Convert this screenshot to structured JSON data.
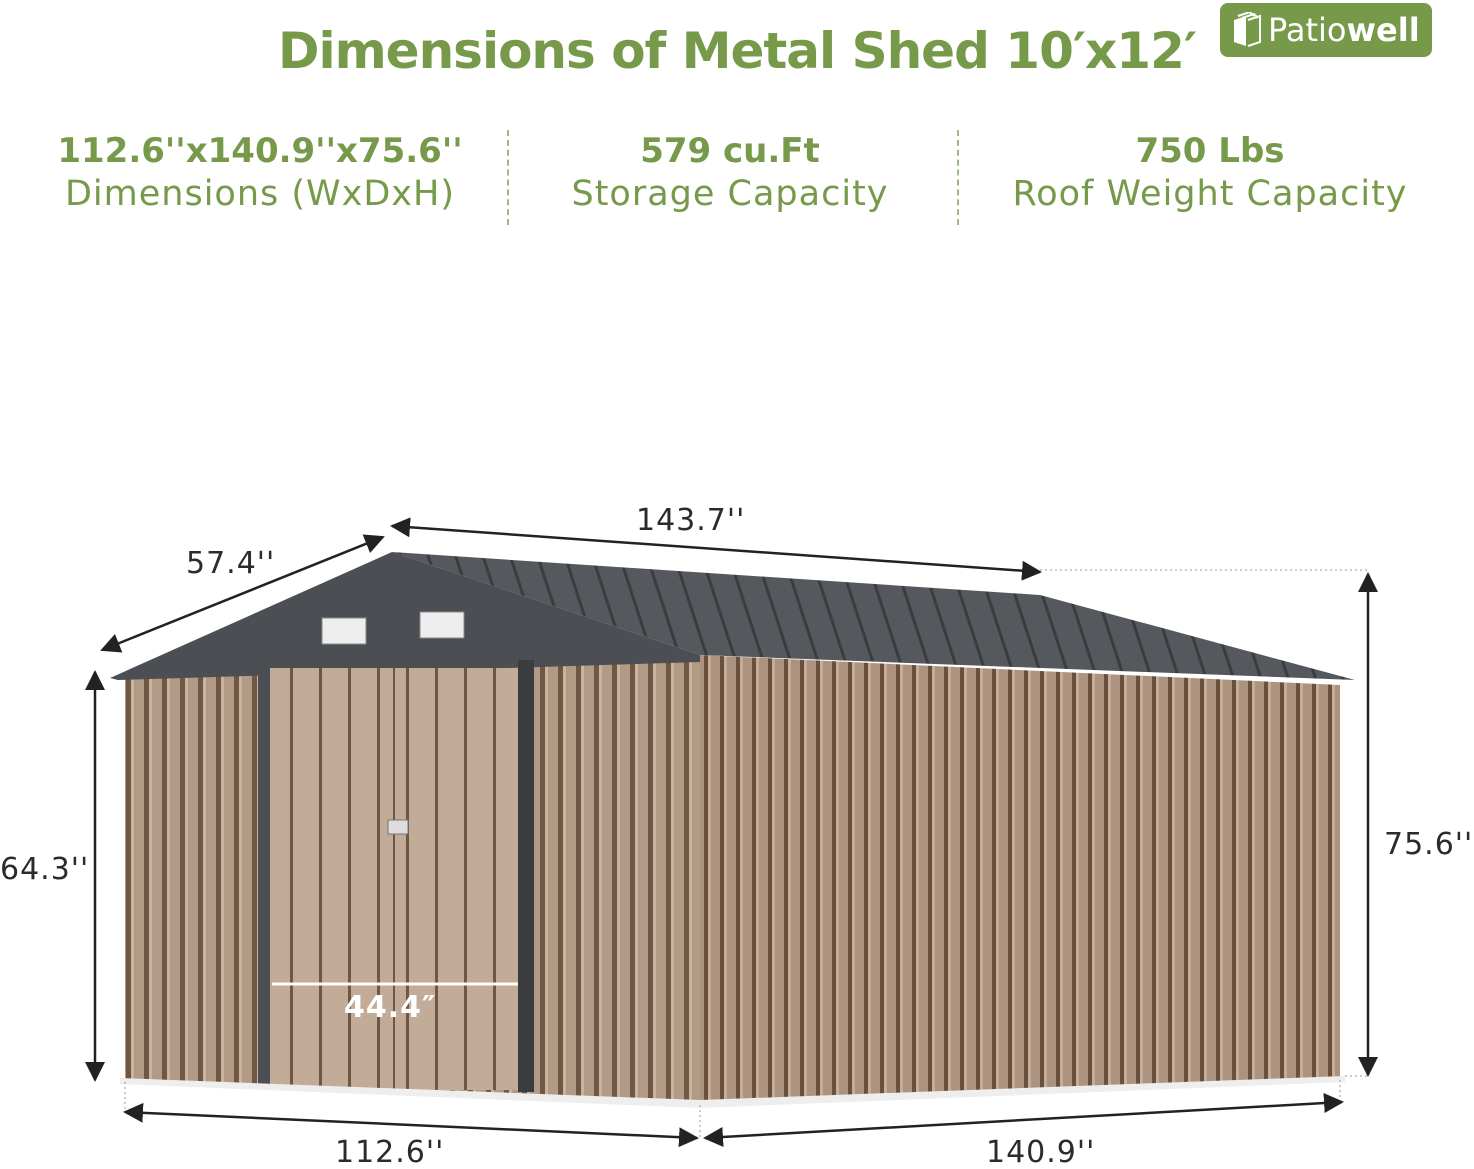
{
  "title": "Dimensions of Metal Shed 10′x12′",
  "logo": {
    "text_light": "Patio",
    "text_bold": "well"
  },
  "stats": [
    {
      "value": "112.6''x140.9''x75.6''",
      "label": "Dimensions (WxDxH)"
    },
    {
      "value": "579 cu.Ft",
      "label": "Storage Capacity"
    },
    {
      "value": "750 Lbs",
      "label": "Roof Weight Capacity"
    }
  ],
  "dimensions": {
    "roof_slope": "57.4''",
    "roof_length": "143.7''",
    "total_height": "75.6''",
    "wall_height": "64.3''",
    "door_width": "44.4″",
    "width": "112.6''",
    "depth": "140.9''"
  },
  "colors": {
    "brand_green": "#76994a",
    "wall": "#b39a84",
    "roof": "#4b4e52"
  }
}
